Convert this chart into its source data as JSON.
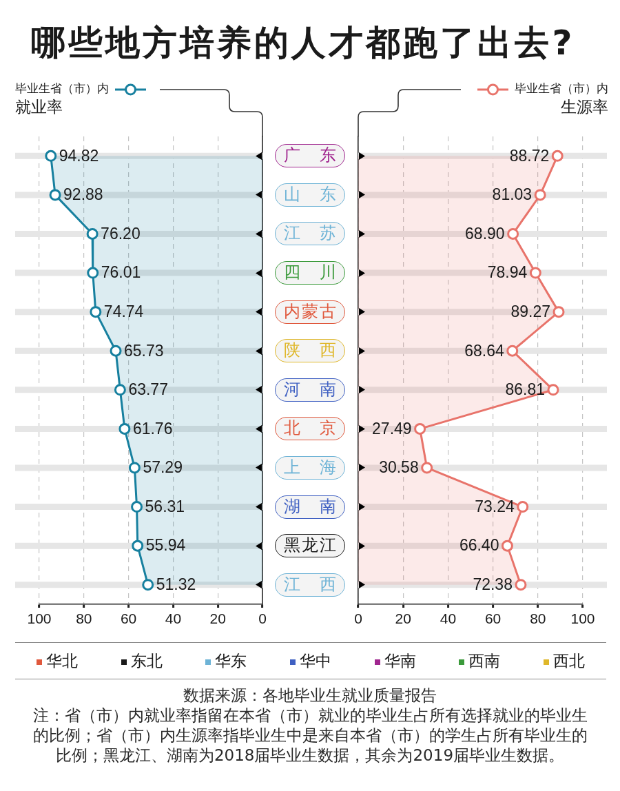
{
  "chart_data": [
    {
      "type": "area",
      "title": "哪些地方培养的人才都跑了出去?",
      "orientation": "horizontal",
      "categories": [
        null,
        null,
        null,
        null,
        null,
        null,
        null,
        null,
        null,
        null,
        null,
        null
      ],
      "series": [
        {
          "name": "毕业生省（市）内就业率",
          "color": "#17809f",
          "values": [
            94.82,
            92.88,
            76.2,
            76.01,
            74.74,
            65.73,
            63.77,
            61.76,
            57.29,
            56.31,
            55.94,
            51.32
          ],
          "value_labels": [
            "94.82",
            "92.88",
            "76.20",
            "76.01",
            "74.74",
            "65.73",
            "63.77",
            "61.76",
            "57.29",
            "56.31",
            "55.94",
            "51.32"
          ]
        }
      ],
      "xlim": [
        100,
        0
      ],
      "xticks": [
        100,
        80,
        60,
        40,
        20,
        0
      ],
      "grid": true,
      "legend": "top left",
      "marker": "circle",
      "tick_labels": "x"
    },
    {
      "type": "other",
      "categories": [
        "广东",
        "山东",
        "江苏",
        "四川",
        "内蒙古",
        "陕西",
        "河南",
        "北京",
        "上海",
        "湖南",
        "黑龙江",
        "江西"
      ],
      "colors": [
        "#a0268f",
        "#6db3d6",
        "#6db3d6",
        "#3b9a3b",
        "#e0583c",
        "#dfb72a",
        "#3f60c2",
        "#e0583c",
        "#6db3d6",
        "#3f60c2",
        "#1a1a1a",
        "#6db3d6"
      ]
    },
    {
      "type": "area",
      "orientation": "horizontal",
      "categories": [
        null,
        null,
        null,
        null,
        null,
        null,
        null,
        null,
        null,
        null,
        null,
        null
      ],
      "series": [
        {
          "name": "毕业生省（市）内生源率",
          "color": "#e8736a",
          "values": [
            88.72,
            81.03,
            68.9,
            78.94,
            89.27,
            68.64,
            86.81,
            27.49,
            30.58,
            73.24,
            66.4,
            72.38
          ],
          "value_labels": [
            "88.72",
            "81.03",
            "68.90",
            "78.94",
            "89.27",
            "68.64",
            "86.81",
            "27.49",
            "30.58",
            "73.24",
            "66.40",
            "72.38"
          ]
        }
      ],
      "xlim": [
        0,
        100
      ],
      "xticks": [
        0,
        20,
        40,
        60,
        80,
        100
      ],
      "grid": true,
      "legend": "top right",
      "marker": "circle",
      "tick_labels": "x"
    },
    {
      "type": "other",
      "categories": [
        "华北",
        "东北",
        "华东",
        "华中",
        "华南",
        "西南",
        "西北"
      ],
      "colors": [
        "#e0583c",
        "#1a1a1a",
        "#6db3d6",
        "#3f60c2",
        "#a0268f",
        "#3b9a3b",
        "#dfb72a"
      ],
      "annotations": [
        "数据来源：各地毕业生就业质量报告",
        "注：省（市）内就业率指留在本省（市）就业的毕业生占所有选择就业的毕业生的比例；省（市）内生源率指毕业生中是来自本省（市）的学生占所有毕业生的比例；黑龙江、湖南为2018届毕业生数据，其余为2019届毕业生数据。"
      ]
    }
  ]
}
